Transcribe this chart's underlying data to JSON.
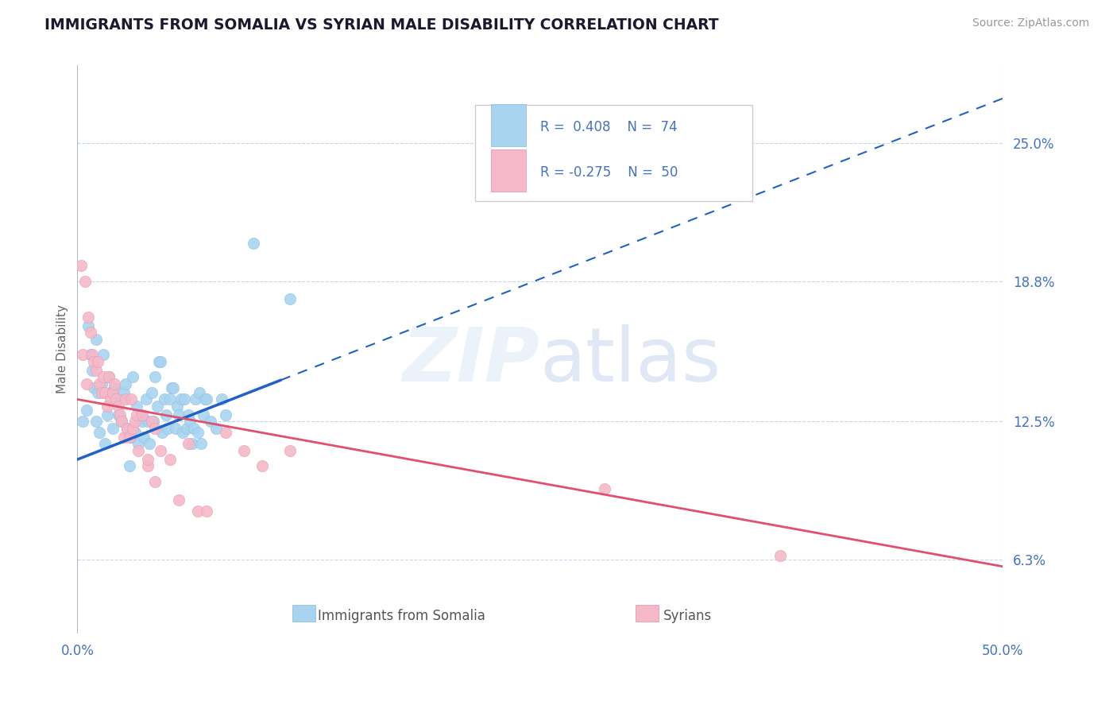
{
  "title": "IMMIGRANTS FROM SOMALIA VS SYRIAN MALE DISABILITY CORRELATION CHART",
  "source": "Source: ZipAtlas.com",
  "ylabel": "Male Disability",
  "xlim": [
    0.0,
    50.0
  ],
  "ylim": [
    3.0,
    28.5
  ],
  "yticks": [
    6.3,
    12.5,
    18.8,
    25.0
  ],
  "ytick_labels": [
    "6.3%",
    "12.5%",
    "18.8%",
    "25.0%"
  ],
  "xticks": [
    0.0,
    50.0
  ],
  "xtick_labels": [
    "0.0%",
    "50.0%"
  ],
  "color_somalia": "#a8d4f0",
  "color_syria": "#f5b8c8",
  "color_line_somalia": "#2060c8",
  "color_line_syria": "#e05070",
  "color_text_blue": "#4472c4",
  "color_title": "#1a1a2e",
  "background": "#ffffff",
  "somalia_line_x0": 0.0,
  "somalia_line_y0": 10.8,
  "somalia_line_x1": 50.0,
  "somalia_line_y1": 27.0,
  "somalia_solid_end": 11.0,
  "syria_line_x0": 0.0,
  "syria_line_y0": 13.5,
  "syria_line_x1": 50.0,
  "syria_line_y1": 6.0,
  "somalia_x": [
    0.3,
    0.5,
    0.6,
    0.7,
    0.8,
    0.9,
    1.0,
    1.0,
    1.1,
    1.2,
    1.3,
    1.4,
    1.5,
    1.6,
    1.7,
    1.8,
    1.9,
    2.0,
    2.1,
    2.2,
    2.3,
    2.4,
    2.5,
    2.6,
    2.7,
    2.8,
    2.9,
    3.0,
    3.1,
    3.2,
    3.3,
    3.4,
    3.5,
    3.6,
    3.7,
    3.8,
    3.9,
    4.0,
    4.1,
    4.2,
    4.3,
    4.4,
    4.5,
    4.6,
    4.7,
    4.8,
    4.9,
    5.0,
    5.1,
    5.2,
    5.3,
    5.4,
    5.5,
    5.6,
    5.7,
    5.8,
    5.9,
    6.0,
    6.1,
    6.2,
    6.3,
    6.4,
    6.5,
    6.6,
    6.7,
    6.8,
    6.9,
    7.0,
    7.2,
    7.5,
    7.8,
    8.0,
    9.5,
    11.5
  ],
  "somalia_y": [
    12.5,
    13.0,
    16.8,
    15.5,
    14.8,
    14.0,
    12.5,
    16.2,
    13.8,
    12.0,
    14.2,
    15.5,
    11.5,
    12.8,
    14.5,
    13.8,
    12.2,
    14.0,
    13.5,
    12.8,
    13.5,
    12.5,
    13.8,
    14.2,
    12.2,
    10.5,
    11.8,
    14.5,
    12.0,
    13.2,
    11.5,
    12.8,
    12.5,
    11.8,
    13.5,
    12.5,
    11.5,
    13.8,
    12.5,
    14.5,
    13.2,
    15.2,
    15.2,
    12.0,
    13.5,
    12.8,
    12.2,
    13.5,
    14.0,
    14.0,
    12.2,
    13.2,
    12.8,
    13.5,
    12.0,
    13.5,
    12.2,
    12.8,
    12.5,
    11.5,
    12.2,
    13.5,
    12.0,
    13.8,
    11.5,
    12.8,
    13.5,
    13.5,
    12.5,
    12.2,
    13.5,
    12.8,
    20.5,
    18.0
  ],
  "syria_x": [
    0.2,
    0.3,
    0.4,
    0.5,
    0.6,
    0.7,
    0.8,
    0.9,
    1.0,
    1.1,
    1.2,
    1.3,
    1.4,
    1.5,
    1.6,
    1.7,
    1.8,
    1.9,
    2.0,
    2.1,
    2.2,
    2.3,
    2.4,
    2.5,
    2.6,
    2.7,
    2.8,
    2.9,
    3.0,
    3.1,
    3.2,
    3.3,
    3.5,
    3.8,
    4.0,
    4.2,
    4.5,
    5.0,
    6.0,
    8.0,
    3.8,
    9.0,
    10.0,
    11.5,
    28.5,
    38.0,
    4.2,
    5.5,
    6.5,
    7.0
  ],
  "syria_y": [
    19.5,
    15.5,
    18.8,
    14.2,
    17.2,
    16.5,
    15.5,
    15.2,
    14.8,
    15.2,
    14.2,
    13.8,
    14.5,
    13.8,
    13.2,
    14.5,
    13.5,
    13.8,
    14.2,
    13.5,
    13.2,
    12.8,
    12.5,
    11.8,
    13.5,
    12.2,
    11.8,
    13.5,
    12.2,
    12.5,
    12.8,
    11.2,
    12.8,
    10.5,
    12.5,
    12.2,
    11.2,
    10.8,
    11.5,
    12.0,
    10.8,
    11.2,
    10.5,
    11.2,
    9.5,
    6.5,
    9.8,
    9.0,
    8.5,
    8.5
  ]
}
